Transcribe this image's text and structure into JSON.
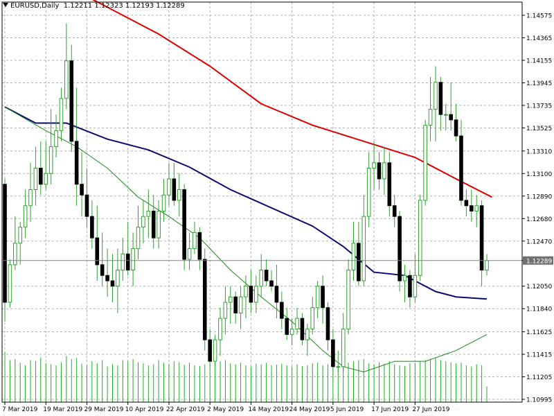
{
  "header": {
    "symbol": "EURUSD,Daily",
    "ohlc": "1.12211 1.12323 1.12193 1.12289"
  },
  "chart_data": {
    "type": "candlestick",
    "symbol": "EURUSD",
    "timeframe": "Daily",
    "current_price": "1.12289",
    "ylim": [
      1.10995,
      1.14672
    ],
    "y_ticks": [
      "1.14575",
      "1.14365",
      "1.14155",
      "1.13945",
      "1.13735",
      "1.13525",
      "1.13310",
      "1.13100",
      "1.12890",
      "1.12680",
      "1.12470",
      "1.12289",
      "1.12050",
      "1.11840",
      "1.11625",
      "1.11415",
      "1.11205",
      "1.10995"
    ],
    "x_ticks": [
      "7 Mar 2019",
      "19 Mar 2019",
      "29 Mar 2019",
      "10 Apr 2019",
      "22 Apr 2019",
      "2 May 2019",
      "14 May 2019",
      "24 May 2019",
      "5 Jun 2019",
      "17 Jun 2019",
      "27 Jun 2019"
    ],
    "grid": true,
    "colors": {
      "background": "#ffffff",
      "grid": "#b0b0b0",
      "bull_body": "#ffffff",
      "bull_outline": "#2ea02e",
      "bear_body": "#000000",
      "wick": "#2ea02e",
      "volume": "#22aa22",
      "ma_red": "#dd0000",
      "ma_navy": "#0a0a6e",
      "ma_green": "#1a8a1a",
      "price_line": "#808080",
      "price_badge": "#707070"
    },
    "candles": [
      [
        1.13,
        1.1305,
        1.1172,
        1.119
      ],
      [
        1.119,
        1.123,
        1.1185,
        1.1225
      ],
      [
        1.1225,
        1.127,
        1.122,
        1.1245
      ],
      [
        1.1245,
        1.1265,
        1.1225,
        1.126
      ],
      [
        1.126,
        1.1295,
        1.125,
        1.128
      ],
      [
        1.128,
        1.132,
        1.1265,
        1.1295
      ],
      [
        1.1295,
        1.1335,
        1.128,
        1.1315
      ],
      [
        1.1315,
        1.134,
        1.129,
        1.13
      ],
      [
        1.13,
        1.134,
        1.1295,
        1.131
      ],
      [
        1.131,
        1.137,
        1.13,
        1.1335
      ],
      [
        1.1335,
        1.1365,
        1.1325,
        1.135
      ],
      [
        1.135,
        1.139,
        1.134,
        1.138
      ],
      [
        1.138,
        1.145,
        1.137,
        1.1415
      ],
      [
        1.1415,
        1.143,
        1.133,
        1.134
      ],
      [
        1.134,
        1.139,
        1.128,
        1.13
      ],
      [
        1.13,
        1.133,
        1.127,
        1.129
      ],
      [
        1.129,
        1.1315,
        1.126,
        1.127
      ],
      [
        1.127,
        1.1285,
        1.124,
        1.125
      ],
      [
        1.125,
        1.128,
        1.121,
        1.1225
      ],
      [
        1.1225,
        1.1255,
        1.1205,
        1.1215
      ],
      [
        1.1215,
        1.124,
        1.1195,
        1.121
      ],
      [
        1.121,
        1.1235,
        1.119,
        1.1205
      ],
      [
        1.1205,
        1.124,
        1.118,
        1.122
      ],
      [
        1.122,
        1.125,
        1.121,
        1.1235
      ],
      [
        1.1235,
        1.1265,
        1.1215,
        1.122
      ],
      [
        1.122,
        1.1255,
        1.1205,
        1.124
      ],
      [
        1.124,
        1.128,
        1.123,
        1.126
      ],
      [
        1.126,
        1.1285,
        1.1245,
        1.127
      ],
      [
        1.127,
        1.1295,
        1.125,
        1.1275
      ],
      [
        1.1275,
        1.129,
        1.124,
        1.125
      ],
      [
        1.125,
        1.1285,
        1.124,
        1.1275
      ],
      [
        1.1275,
        1.1305,
        1.1265,
        1.129
      ],
      [
        1.129,
        1.132,
        1.128,
        1.1305
      ],
      [
        1.1305,
        1.132,
        1.128,
        1.1285
      ],
      [
        1.1285,
        1.131,
        1.127,
        1.1295
      ],
      [
        1.1295,
        1.13,
        1.122,
        1.123
      ],
      [
        1.123,
        1.1255,
        1.122,
        1.124
      ],
      [
        1.124,
        1.1265,
        1.1235,
        1.1255
      ],
      [
        1.1255,
        1.126,
        1.122,
        1.123
      ],
      [
        1.123,
        1.124,
        1.1145,
        1.1155
      ],
      [
        1.1155,
        1.1165,
        1.113,
        1.1135
      ],
      [
        1.1135,
        1.116,
        1.113,
        1.1155
      ],
      [
        1.1155,
        1.1185,
        1.114,
        1.1175
      ],
      [
        1.1175,
        1.1205,
        1.116,
        1.119
      ],
      [
        1.119,
        1.1205,
        1.117,
        1.1195
      ],
      [
        1.1195,
        1.12,
        1.117,
        1.118
      ],
      [
        1.118,
        1.1205,
        1.1165,
        1.1195
      ],
      [
        1.1195,
        1.1215,
        1.1175,
        1.1205
      ],
      [
        1.1205,
        1.122,
        1.118,
        1.119
      ],
      [
        1.119,
        1.1215,
        1.118,
        1.1205
      ],
      [
        1.1205,
        1.1235,
        1.1195,
        1.122
      ],
      [
        1.122,
        1.123,
        1.1205,
        1.121
      ],
      [
        1.121,
        1.122,
        1.12,
        1.1205
      ],
      [
        1.1205,
        1.1225,
        1.1175,
        1.119
      ],
      [
        1.119,
        1.12,
        1.1165,
        1.1175
      ],
      [
        1.1175,
        1.1185,
        1.1155,
        1.116
      ],
      [
        1.116,
        1.1175,
        1.115,
        1.1165
      ],
      [
        1.1165,
        1.1185,
        1.116,
        1.1175
      ],
      [
        1.1175,
        1.118,
        1.115,
        1.1155
      ],
      [
        1.1155,
        1.117,
        1.114,
        1.1165
      ],
      [
        1.1165,
        1.1195,
        1.116,
        1.1185
      ],
      [
        1.1185,
        1.121,
        1.1175,
        1.1205
      ],
      [
        1.1205,
        1.1215,
        1.117,
        1.1185
      ],
      [
        1.1185,
        1.119,
        1.1145,
        1.1155
      ],
      [
        1.1155,
        1.1165,
        1.1125,
        1.113
      ],
      [
        1.113,
        1.1145,
        1.1125,
        1.113
      ],
      [
        1.113,
        1.118,
        1.1125,
        1.1165
      ],
      [
        1.1165,
        1.123,
        1.116,
        1.122
      ],
      [
        1.122,
        1.1265,
        1.121,
        1.1245
      ],
      [
        1.1245,
        1.1265,
        1.1205,
        1.121
      ],
      [
        1.121,
        1.129,
        1.1205,
        1.127
      ],
      [
        1.127,
        1.133,
        1.126,
        1.1315
      ],
      [
        1.1315,
        1.134,
        1.1295,
        1.132
      ],
      [
        1.132,
        1.133,
        1.1295,
        1.1305
      ],
      [
        1.1305,
        1.1335,
        1.129,
        1.132
      ],
      [
        1.132,
        1.133,
        1.127,
        1.128
      ],
      [
        1.128,
        1.129,
        1.126,
        1.127
      ],
      [
        1.127,
        1.1275,
        1.12,
        1.121
      ],
      [
        1.121,
        1.1225,
        1.119,
        1.1215
      ],
      [
        1.1215,
        1.122,
        1.1185,
        1.1195
      ],
      [
        1.1195,
        1.1235,
        1.119,
        1.1215
      ],
      [
        1.1215,
        1.129,
        1.121,
        1.1285
      ],
      [
        1.1285,
        1.136,
        1.128,
        1.1355
      ],
      [
        1.1355,
        1.14,
        1.134,
        1.137
      ],
      [
        1.137,
        1.141,
        1.134,
        1.1395
      ],
      [
        1.1395,
        1.14,
        1.135,
        1.1365
      ],
      [
        1.1365,
        1.1375,
        1.135,
        1.1365
      ],
      [
        1.1365,
        1.1395,
        1.135,
        1.136
      ],
      [
        1.136,
        1.1375,
        1.134,
        1.1345
      ],
      [
        1.1345,
        1.136,
        1.128,
        1.1285
      ],
      [
        1.1285,
        1.1295,
        1.127,
        1.128
      ],
      [
        1.128,
        1.1295,
        1.1265,
        1.1275
      ],
      [
        1.1275,
        1.129,
        1.126,
        1.128
      ],
      [
        1.128,
        1.1285,
        1.1205,
        1.122
      ],
      [
        1.122,
        1.1235,
        1.1215,
        1.12289
      ]
    ],
    "volume": [
      95,
      80,
      82,
      75,
      70,
      80,
      78,
      85,
      74,
      72,
      70,
      76,
      88,
      82,
      84,
      73,
      70,
      78,
      74,
      80,
      68,
      72,
      70,
      80,
      78,
      82,
      76,
      74,
      70,
      72,
      80,
      75,
      73,
      78,
      76,
      71,
      75,
      70,
      69,
      72,
      70,
      76,
      78,
      80,
      74,
      72,
      75,
      70,
      68,
      73,
      72,
      75,
      70,
      71,
      73,
      70,
      68,
      72,
      69,
      70,
      74,
      75,
      70,
      72,
      73,
      68,
      70,
      75,
      78,
      80,
      82,
      74,
      72,
      76,
      73,
      78,
      72,
      70,
      69,
      74,
      75,
      78,
      80,
      82,
      84,
      80,
      78,
      76,
      74,
      75,
      70,
      68,
      72,
      70,
      30
    ],
    "moving_averages": [
      {
        "color": "#dd0000",
        "points": [
          [
            0,
            1.15
          ],
          [
            12,
            1.1485
          ],
          [
            20,
            1.1465
          ],
          [
            30,
            1.144
          ],
          [
            40,
            1.141
          ],
          [
            50,
            1.1375
          ],
          [
            60,
            1.1355
          ],
          [
            70,
            1.134
          ],
          [
            80,
            1.1325
          ],
          [
            88,
            1.1305
          ],
          [
            95,
            1.1288
          ]
        ]
      },
      {
        "color": "#0a0a6e",
        "points": [
          [
            0,
            1.1372
          ],
          [
            6,
            1.1357
          ],
          [
            12,
            1.1357
          ],
          [
            20,
            1.1342
          ],
          [
            28,
            1.1332
          ],
          [
            36,
            1.1316
          ],
          [
            44,
            1.1295
          ],
          [
            52,
            1.1278
          ],
          [
            60,
            1.1261
          ],
          [
            66,
            1.1242
          ],
          [
            72,
            1.1218
          ],
          [
            78,
            1.1215
          ],
          [
            84,
            1.12
          ],
          [
            88,
            1.1195
          ],
          [
            94,
            1.1193
          ]
        ]
      },
      {
        "color": "#1a8a1a",
        "points": [
          [
            0,
            1.1372
          ],
          [
            8,
            1.135
          ],
          [
            14,
            1.1335
          ],
          [
            20,
            1.1315
          ],
          [
            26,
            1.1288
          ],
          [
            32,
            1.127
          ],
          [
            38,
            1.125
          ],
          [
            44,
            1.122
          ],
          [
            50,
            1.1195
          ],
          [
            56,
            1.1172
          ],
          [
            62,
            1.1145
          ],
          [
            66,
            1.113
          ],
          [
            70,
            1.1125
          ],
          [
            76,
            1.1135
          ],
          [
            82,
            1.1135
          ],
          [
            88,
            1.1145
          ],
          [
            94,
            1.116
          ]
        ]
      }
    ]
  }
}
